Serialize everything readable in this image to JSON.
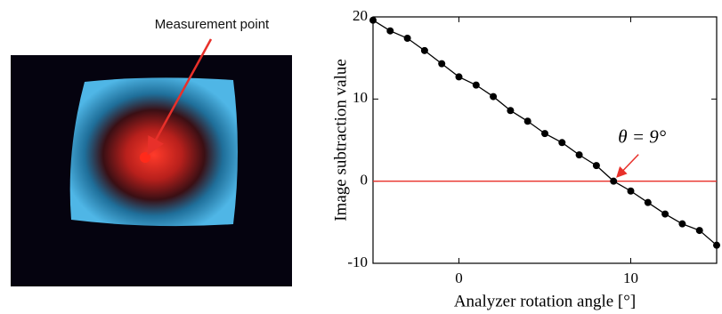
{
  "figure": {
    "label": "Measurement point"
  },
  "chart_data": {
    "type": "line",
    "x_label": "Analyzer rotation angle [°]",
    "y_label": "Image subtraction value",
    "x": [
      -5,
      -4,
      -3,
      -2,
      -1,
      0,
      1,
      2,
      3,
      4,
      5,
      6,
      7,
      8,
      9,
      10,
      11,
      12,
      13,
      14,
      15
    ],
    "series": [
      {
        "color": "#000000",
        "values": [
          19.6,
          18.3,
          17.4,
          15.9,
          14.3,
          12.7,
          11.7,
          10.3,
          8.6,
          7.3,
          5.8,
          4.7,
          3.2,
          1.9,
          0,
          -1.2,
          -2.6,
          -4,
          -5.2,
          -6,
          -7.8
        ]
      }
    ],
    "xlim": [
      -5,
      15
    ],
    "ylim": [
      -10,
      20
    ],
    "xticks": [
      0,
      10
    ],
    "yticks": [
      -10,
      0,
      10,
      20
    ],
    "reference_line": {
      "value": 0,
      "color": "#e8302a"
    },
    "annotation": {
      "text": "θ = 9°",
      "x": 9,
      "y": 0
    }
  }
}
